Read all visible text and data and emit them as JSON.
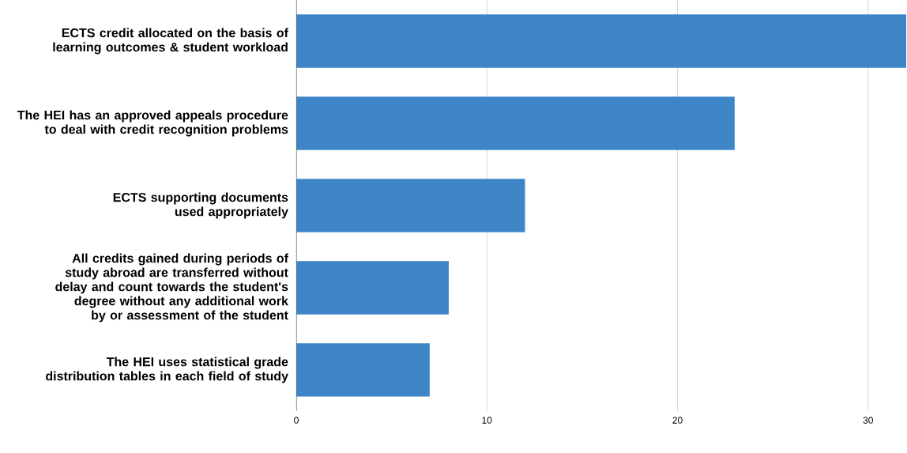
{
  "chart_data": {
    "type": "bar",
    "orientation": "horizontal",
    "categories": [
      "ECTS credit allocated on the basis of learning outcomes & student workload",
      "The HEI has an approved appeals procedure to deal with credit recognition problems",
      "ECTS supporting documents used appropriately",
      "All credits gained during periods of study abroad are transferred without delay and count towards the student's degree without any additional work by or assessment of the student",
      "The HEI uses statistical grade distribution tables in each field of study"
    ],
    "values": [
      32,
      23,
      12,
      8,
      7
    ],
    "color": "#3d85c6",
    "xlim": [
      0,
      32
    ],
    "xticks": [
      0,
      10,
      20,
      30
    ],
    "grid": "x"
  }
}
